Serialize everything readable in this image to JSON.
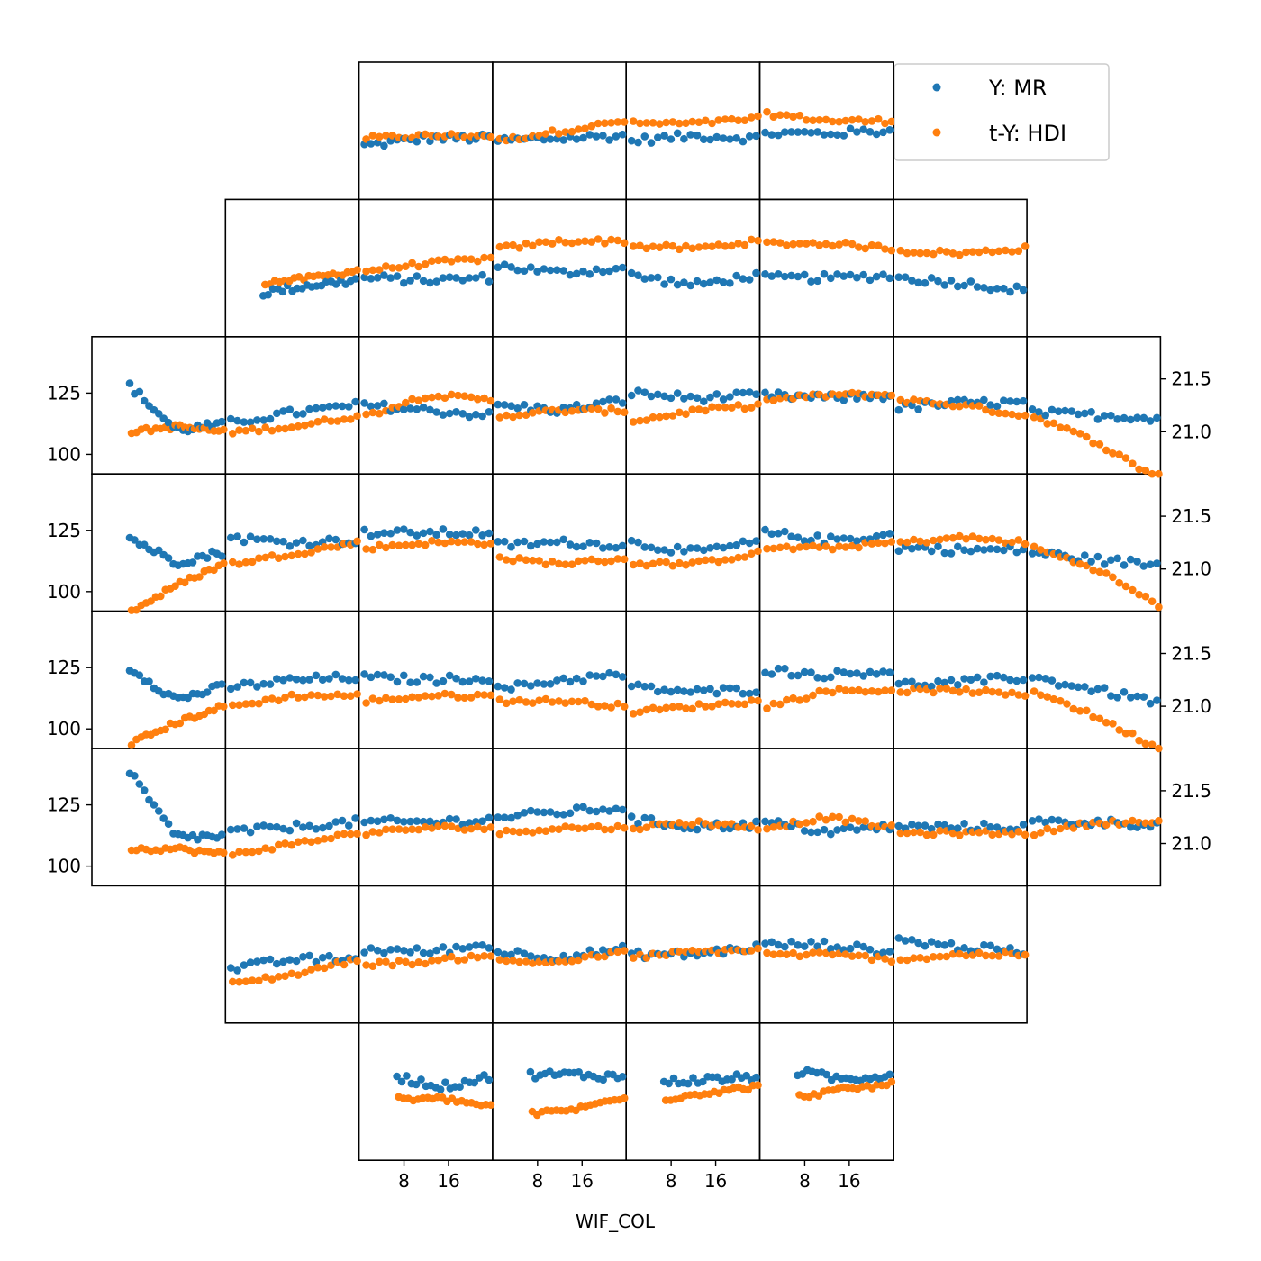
{
  "chart_data": {
    "type": "scatter",
    "description_of_layout": "mosaic",
    "xlabel": "WIF_COL",
    "x_ticks": [
      "8",
      "16"
    ],
    "left_yticks": [
      "125",
      "100"
    ],
    "left_ylim": [
      92,
      148
    ],
    "right_yticks": [
      "21.5",
      "21.0"
    ],
    "right_ylim": [
      20.6,
      21.9
    ],
    "xlim": [
      0,
      24
    ],
    "legend": {
      "placement": "top-right"
    },
    "series": [
      {
        "name": "Y: MR",
        "color": "#1f77b4",
        "axis": "left"
      },
      {
        "name": "t-Y: HDI",
        "color": "#ff7f0e",
        "axis": "right"
      }
    ],
    "rows": [
      {
        "row": 0,
        "cols": [
          2,
          3,
          4,
          5
        ],
        "MR": [
          [
            114,
            117,
            117
          ],
          [
            116,
            117,
            118
          ],
          [
            116,
            118,
            117
          ],
          [
            119,
            119,
            120
          ]
        ],
        "HDI": [
          [
            117,
            118,
            118
          ],
          [
            116,
            120,
            124
          ],
          [
            123,
            123,
            125
          ],
          [
            127,
            124,
            124
          ]
        ]
      },
      {
        "row": 1,
        "cols": [
          1,
          2,
          3,
          4,
          5,
          6
        ],
        "MR": [
          [
            110,
            113,
            115
          ],
          [
            116,
            115,
            116
          ],
          [
            121,
            118,
            120
          ],
          [
            117,
            113,
            117
          ],
          [
            116,
            116,
            117
          ],
          [
            116,
            114,
            111
          ]
        ],
        "HDI": [
          [
            114,
            116,
            119
          ],
          [
            119,
            122,
            124
          ],
          [
            128,
            131,
            131
          ],
          [
            129,
            128,
            131
          ],
          [
            130,
            130,
            128
          ],
          [
            127,
            126,
            128
          ]
        ]
      },
      {
        "row": 2,
        "cols": [
          0,
          1,
          2,
          3,
          4,
          5,
          6,
          7
        ],
        "MR": [
          [
            128,
            110,
            112
          ],
          [
            113,
            117,
            120
          ],
          [
            120,
            118,
            116
          ],
          [
            120,
            118,
            122
          ],
          [
            125,
            123,
            124
          ],
          [
            124,
            123,
            124
          ],
          [
            119,
            121,
            121
          ],
          [
            117,
            116,
            115
          ]
        ],
        "HDI": [
          [
            21.0,
            21.05,
            21.0
          ],
          [
            21.0,
            21.05,
            21.15
          ],
          [
            21.15,
            21.35,
            21.3
          ],
          [
            21.15,
            21.2,
            21.2
          ],
          [
            21.1,
            21.2,
            21.25
          ],
          [
            21.3,
            21.35,
            21.35
          ],
          [
            21.3,
            21.25,
            21.15
          ],
          [
            21.15,
            20.9,
            20.55
          ]
        ]
      },
      {
        "row": 3,
        "cols": [
          0,
          1,
          2,
          3,
          4,
          5,
          6,
          7
        ],
        "MR": [
          [
            122,
            112,
            116
          ],
          [
            122,
            120,
            121
          ],
          [
            124,
            124,
            124
          ],
          [
            119,
            120,
            119
          ],
          [
            120,
            116,
            120
          ],
          [
            124,
            121,
            123
          ],
          [
            118,
            117,
            117
          ],
          [
            116,
            113,
            111
          ]
        ],
        "HDI": [
          [
            20.6,
            20.85,
            21.05
          ],
          [
            21.05,
            21.15,
            21.25
          ],
          [
            21.2,
            21.25,
            21.25
          ],
          [
            21.1,
            21.05,
            21.1
          ],
          [
            21.05,
            21.05,
            21.15
          ],
          [
            21.2,
            21.2,
            21.25
          ],
          [
            21.25,
            21.3,
            21.25
          ],
          [
            21.2,
            21.0,
            20.65
          ]
        ]
      },
      {
        "row": 4,
        "cols": [
          0,
          1,
          2,
          3,
          4,
          5,
          6,
          7
        ],
        "MR": [
          [
            125,
            112,
            117
          ],
          [
            117,
            120,
            121
          ],
          [
            121,
            120,
            121
          ],
          [
            116,
            120,
            122
          ],
          [
            117,
            115,
            116
          ],
          [
            124,
            122,
            124
          ],
          [
            118,
            119,
            121
          ],
          [
            121,
            116,
            111
          ]
        ],
        "HDI": [
          [
            20.65,
            20.85,
            21.0
          ],
          [
            21.0,
            21.1,
            21.1
          ],
          [
            21.05,
            21.1,
            21.1
          ],
          [
            21.05,
            21.05,
            21.0
          ],
          [
            20.95,
            21.0,
            21.05
          ],
          [
            21.0,
            21.15,
            21.15
          ],
          [
            21.15,
            21.15,
            21.1
          ],
          [
            21.15,
            20.9,
            20.6
          ]
        ]
      },
      {
        "row": 5,
        "cols": [
          0,
          1,
          2,
          3,
          4,
          5,
          6,
          7
        ],
        "MR": [
          [
            138,
            112,
            112
          ],
          [
            114,
            116,
            118
          ],
          [
            118,
            118,
            119
          ],
          [
            120,
            122,
            124
          ],
          [
            119,
            116,
            117
          ],
          [
            118,
            114,
            116
          ],
          [
            116,
            116,
            116
          ],
          [
            118,
            118,
            117
          ]
        ],
        "HDI": [
          [
            20.95,
            20.95,
            20.9
          ],
          [
            20.9,
            21.0,
            21.1
          ],
          [
            21.1,
            21.15,
            21.15
          ],
          [
            21.1,
            21.15,
            21.15
          ],
          [
            21.15,
            21.2,
            21.15
          ],
          [
            21.15,
            21.25,
            21.15
          ],
          [
            21.1,
            21.1,
            21.1
          ],
          [
            21.1,
            21.2,
            21.2
          ]
        ]
      },
      {
        "row": 6,
        "cols": [
          1,
          2,
          3,
          4,
          5,
          6
        ],
        "MR": [
          [
            114,
            118,
            118
          ],
          [
            122,
            121,
            124
          ],
          [
            121,
            119,
            122
          ],
          [
            120,
            120,
            123
          ],
          [
            124,
            124,
            121
          ],
          [
            126,
            123,
            121
          ]
        ],
        "HDI": [
          [
            108,
            112,
            118
          ],
          [
            116,
            117,
            120
          ],
          [
            117,
            117,
            121
          ],
          [
            119,
            121,
            122
          ],
          [
            120,
            120,
            118
          ],
          [
            118,
            120,
            120
          ]
        ]
      },
      {
        "row": 7,
        "cols": [
          2,
          3,
          4
        ],
        "MR": [
          [
            126,
            122,
            126
          ],
          [
            127,
            127,
            126
          ],
          [
            124,
            125,
            126
          ]
        ],
        "HDI": [
          [
            117,
            117,
            114
          ],
          [
            111,
            113,
            118
          ],
          [
            117,
            120,
            122
          ]
        ]
      },
      {
        "row": 7,
        "cols": [
          5
        ],
        "MR": [
          [
            128,
            125,
            127
          ]
        ],
        "HDI": [
          [
            118,
            121,
            123
          ]
        ]
      }
    ]
  }
}
